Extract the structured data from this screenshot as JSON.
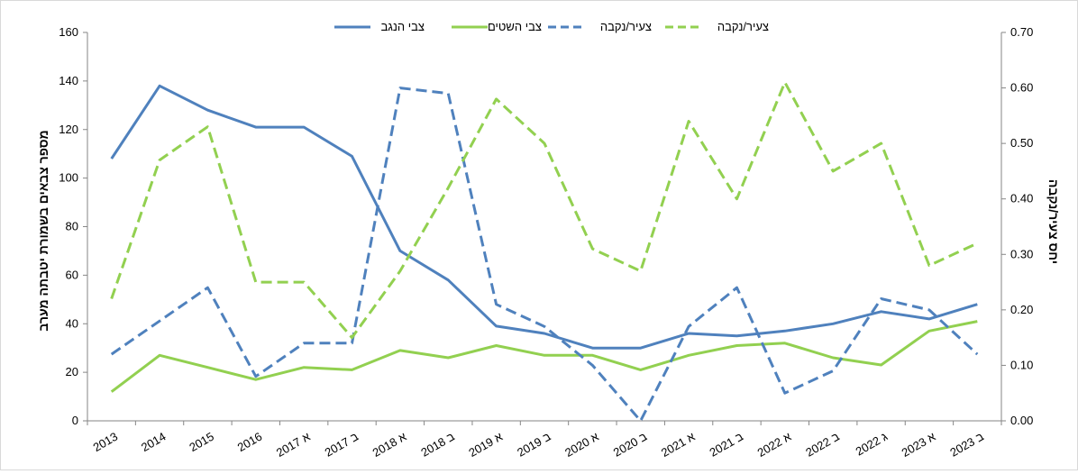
{
  "chart_data": {
    "type": "line",
    "categories": [
      "2013",
      "2014",
      "2015",
      "2016",
      "2017 א",
      "2017 ב",
      "2018 א",
      "2018 ב",
      "2019 א",
      "2019 ב",
      "2020 א",
      "2020 ב",
      "2021 א",
      "2021 ב",
      "2022 א",
      "2022 ב",
      "2022 ג",
      "2023 א",
      "2023 ב"
    ],
    "ylabel": "מספר צבאים בשמורת יטבתה מערב",
    "y2label": "יחס צעיר/נקבה",
    "ylim": [
      0,
      160
    ],
    "y2lim": [
      0,
      0.7
    ],
    "yticks": [
      "0",
      "20",
      "40",
      "60",
      "80",
      "100",
      "120",
      "140",
      "160"
    ],
    "y2ticks": [
      "0.00",
      "0.10",
      "0.20",
      "0.30",
      "0.40",
      "0.50",
      "0.60",
      "0.70"
    ],
    "legend_position": "top",
    "grid": false,
    "series": [
      {
        "name": "צבי הנגב",
        "axis": "left",
        "style": "solid",
        "color": "#4f81bd",
        "values": [
          108,
          138,
          128,
          121,
          121,
          109,
          70,
          58,
          39,
          36,
          30,
          30,
          36,
          35,
          37,
          40,
          45,
          42,
          48
        ]
      },
      {
        "name": "צבי השטים",
        "axis": "left",
        "style": "solid",
        "color": "#92d050",
        "values": [
          12,
          27,
          22,
          17,
          22,
          21,
          29,
          26,
          31,
          27,
          27,
          21,
          27,
          31,
          32,
          26,
          23,
          37,
          41
        ]
      },
      {
        "name": "צעיר/נקבה",
        "axis": "right",
        "style": "dashed",
        "color": "#4f81bd",
        "values": [
          0.12,
          0.18,
          0.24,
          0.08,
          0.14,
          0.14,
          0.6,
          0.59,
          0.21,
          0.17,
          0.1,
          0.0,
          0.17,
          0.24,
          0.05,
          0.09,
          0.22,
          0.2,
          0.12
        ]
      },
      {
        "name": "צעיר/נקבה",
        "axis": "right",
        "style": "dashed",
        "color": "#92d050",
        "values": [
          0.22,
          0.47,
          0.53,
          0.25,
          0.25,
          0.15,
          0.27,
          0.42,
          0.58,
          0.5,
          0.31,
          0.27,
          0.54,
          0.4,
          0.61,
          0.45,
          0.5,
          0.28,
          0.32
        ]
      }
    ]
  }
}
